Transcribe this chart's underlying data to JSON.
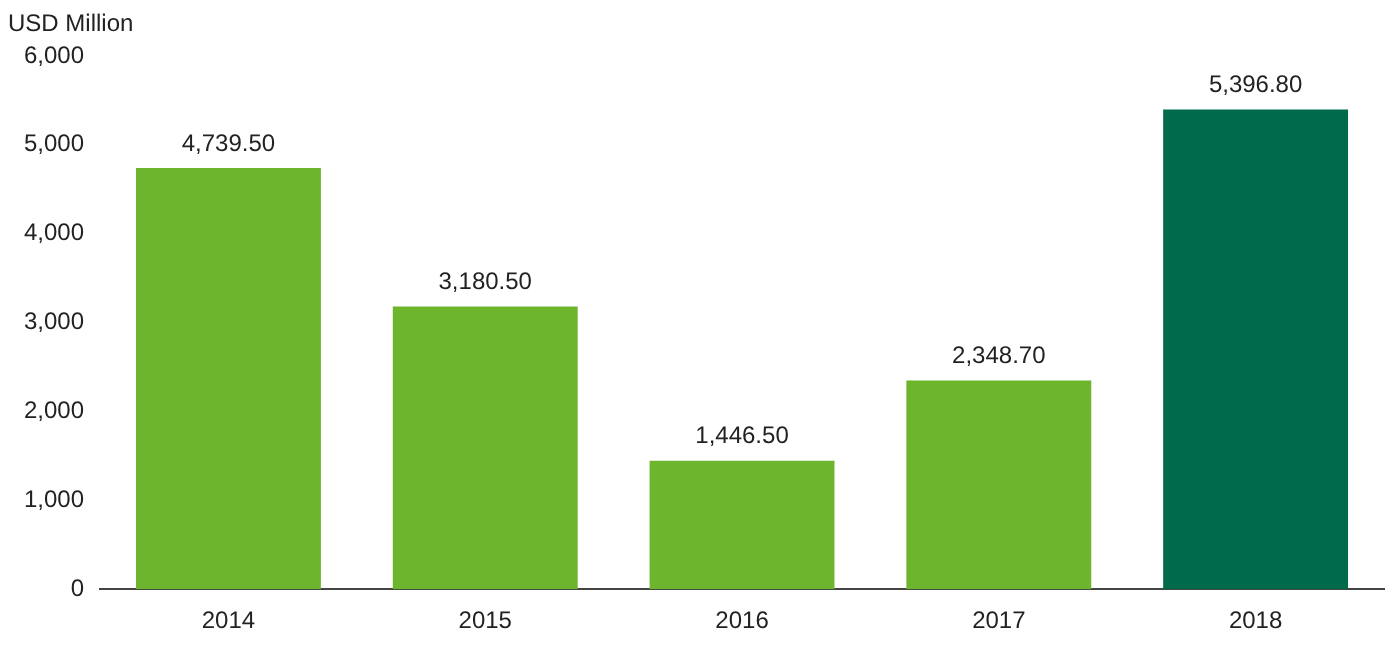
{
  "chart_data": {
    "type": "bar",
    "ylabel": "USD Million",
    "categories": [
      "2014",
      "2015",
      "2016",
      "2017",
      "2018"
    ],
    "values": [
      4739.5,
      3180.5,
      1446.5,
      2348.7,
      5396.8
    ],
    "colors": [
      "#6cb52d",
      "#6cb52d",
      "#6cb52d",
      "#6cb52d",
      "#006b4a"
    ],
    "value_labels": [
      "4,739.50",
      "3,180.50",
      "1,446.50",
      "2,348.70",
      "5,396.80"
    ],
    "ylim": [
      0,
      6000
    ],
    "yticks": [
      {
        "value": 0,
        "label": "0"
      },
      {
        "value": 1000,
        "label": "1,000"
      },
      {
        "value": 2000,
        "label": "2,000"
      },
      {
        "value": 3000,
        "label": "3,000"
      },
      {
        "value": 4000,
        "label": "4,000"
      },
      {
        "value": 5000,
        "label": "5,000"
      },
      {
        "value": 6000,
        "label": "6,000"
      }
    ],
    "grid": false,
    "legend": false
  }
}
